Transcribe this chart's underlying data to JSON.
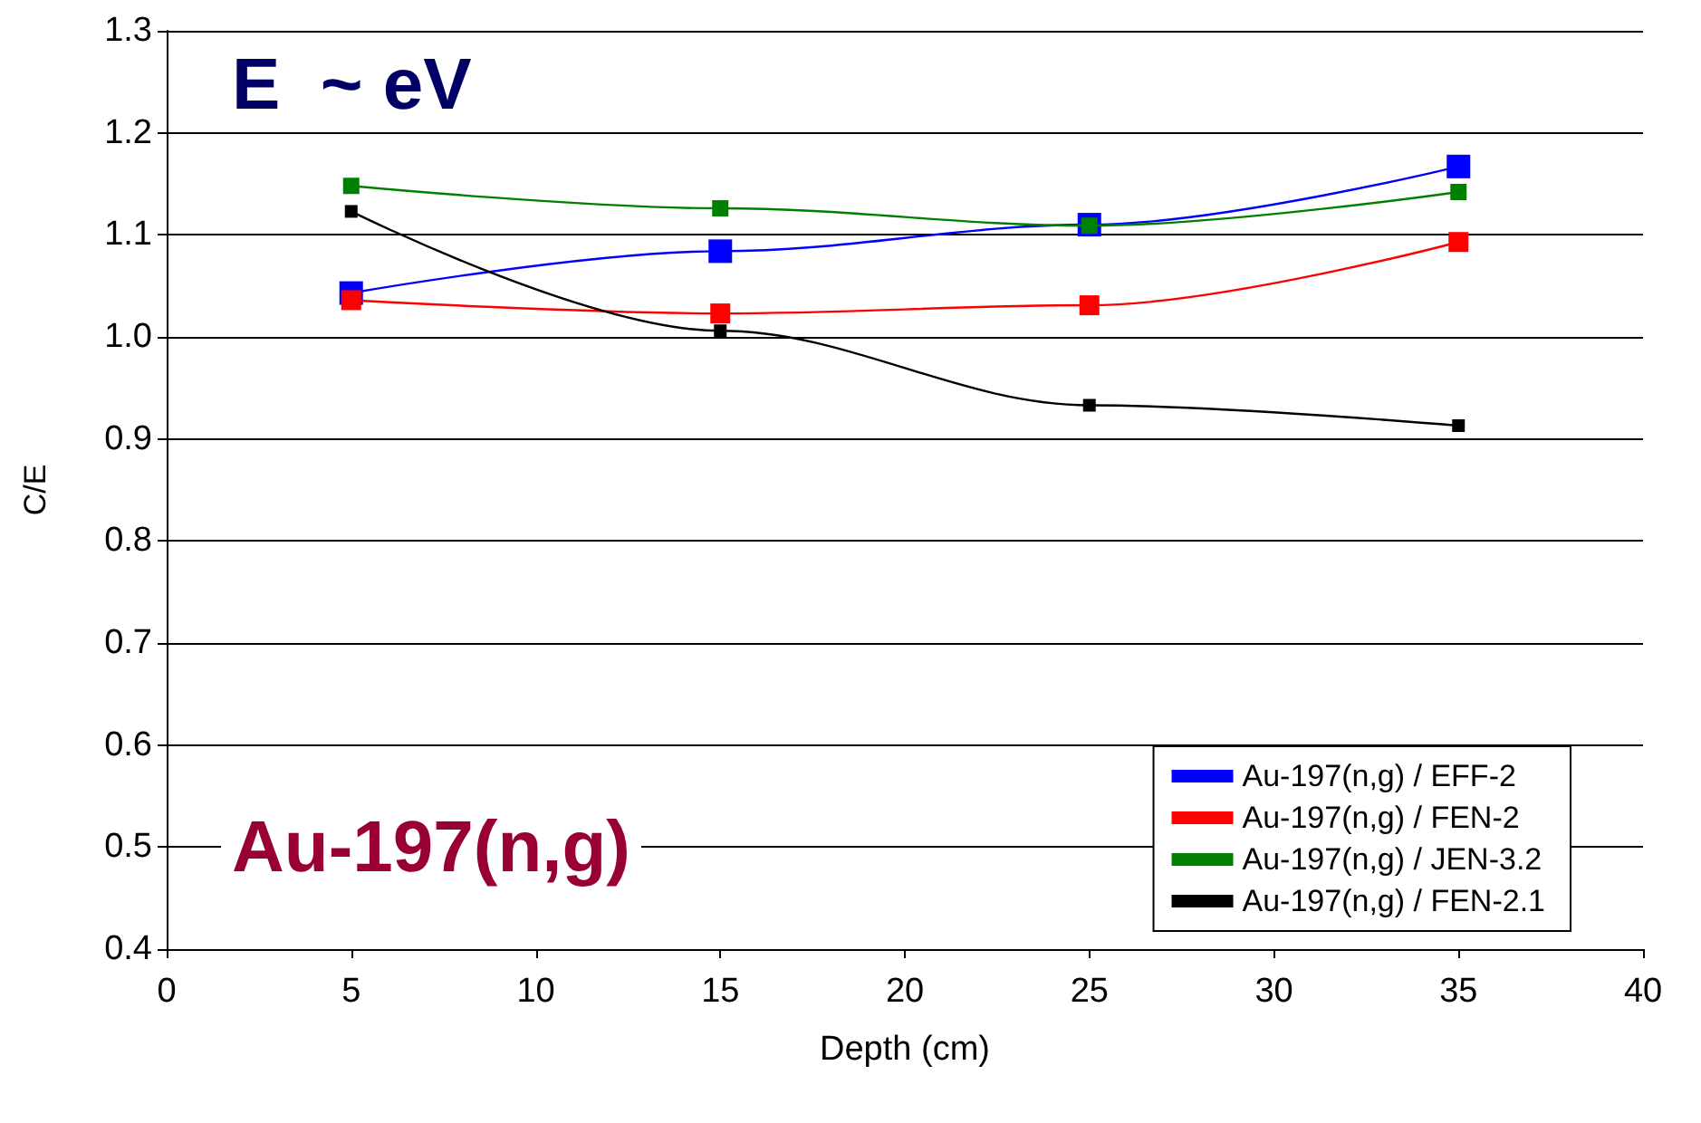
{
  "chart_data": {
    "type": "line",
    "xlabel": "Depth (cm)",
    "ylabel": "C/E",
    "x": [
      5,
      15,
      25,
      35
    ],
    "series": [
      {
        "name": "Au-197(n,g) / EFF-2",
        "color": "#0000ff",
        "values": [
          1.043,
          1.084,
          1.11,
          1.167
        ]
      },
      {
        "name": "Au-197(n,g) / FEN-2",
        "color": "#ff0000",
        "values": [
          1.036,
          1.023,
          1.031,
          1.093
        ]
      },
      {
        "name": "Au-197(n,g) / JEN-3.2",
        "color": "#008000",
        "values": [
          1.148,
          1.126,
          1.109,
          1.142
        ]
      },
      {
        "name": "Au-197(n,g) / FEN-2.1",
        "color": "#000000",
        "values": [
          1.123,
          1.006,
          0.933,
          0.913
        ]
      }
    ],
    "xlim": [
      0,
      40
    ],
    "xticks": [
      0,
      5,
      10,
      15,
      20,
      25,
      30,
      35,
      40
    ],
    "ylim": [
      0.4,
      1.3
    ],
    "yticks": [
      0.4,
      0.5,
      0.6,
      0.7,
      0.8,
      0.9,
      {
        "value": 1,
        "label": "1.0"
      },
      1.1,
      1.2,
      1.3
    ],
    "grid": "y",
    "legend": "bottom right",
    "marker": "square",
    "line_style": "solid",
    "annotations": [
      "E  ~ eV",
      "Au-197(n,g)"
    ]
  }
}
